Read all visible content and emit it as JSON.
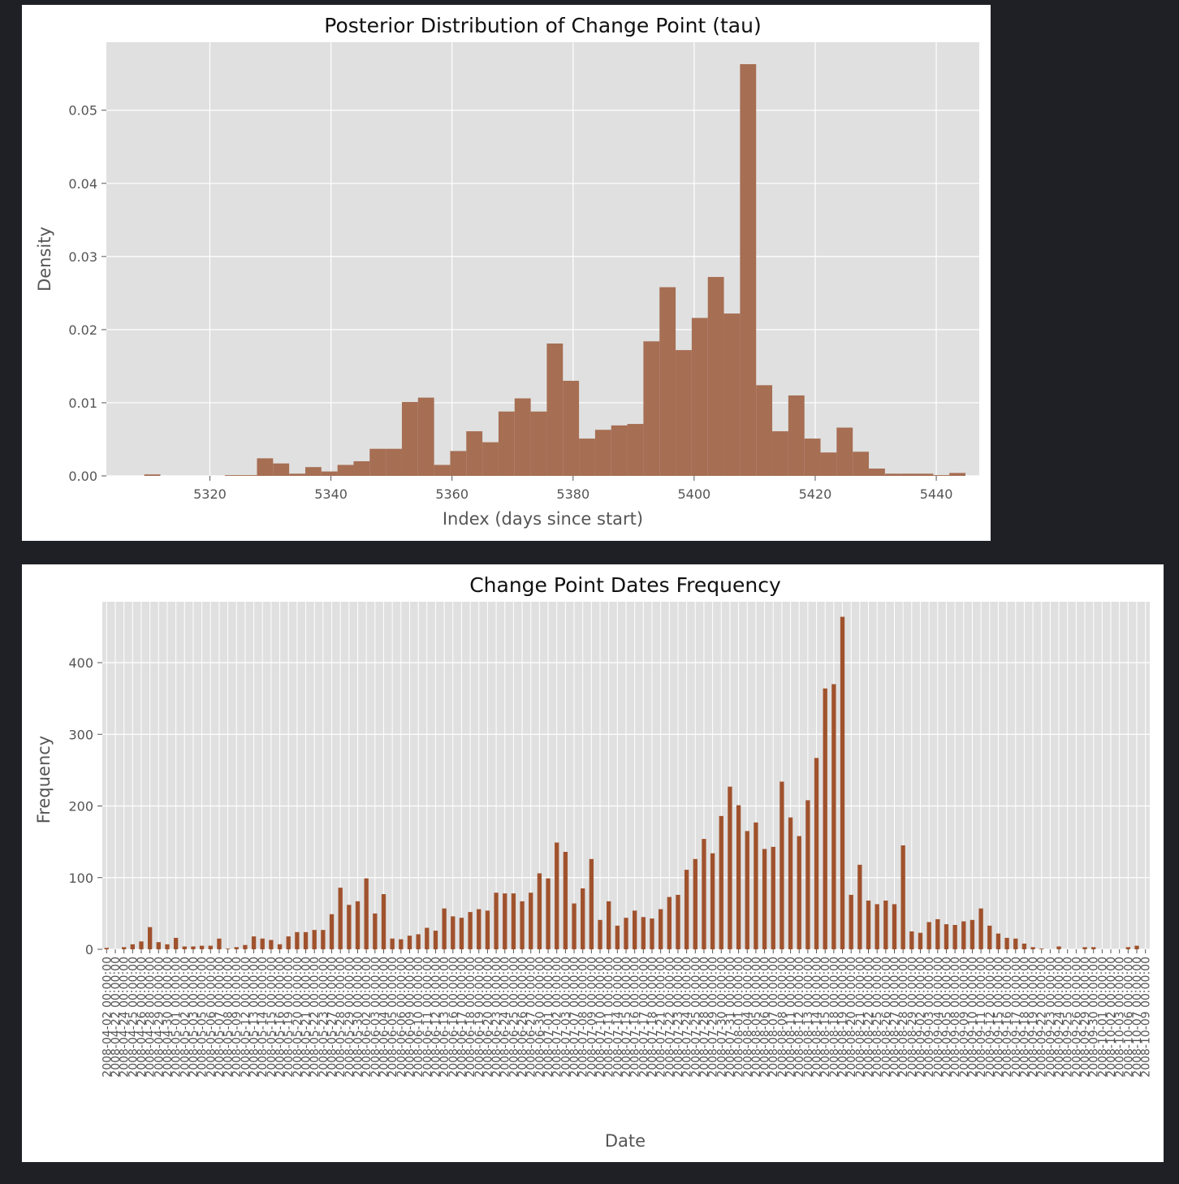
{
  "chart_data": [
    {
      "type": "bar",
      "title": "Posterior Distribution of Change Point (tau)",
      "xlabel": "Index (days since start)",
      "ylabel": "Density",
      "xlim": [
        5302.9,
        5447.1
      ],
      "ylim": [
        0,
        0.0593
      ],
      "xticks": [
        "5320",
        "5340",
        "5360",
        "5380",
        "5400",
        "5420",
        "5440"
      ],
      "yticks": [
        "0.00",
        "0.01",
        "0.02",
        "0.03",
        "0.04",
        "0.05"
      ],
      "bin_start": 5306.5,
      "bin_width": 2.66,
      "values": [
        0.0,
        0.0002,
        0.0,
        0.0,
        0.0,
        0.0,
        0.0001,
        0.0001,
        0.0024,
        0.0017,
        0.0003,
        0.0012,
        0.0006,
        0.0015,
        0.002,
        0.0037,
        0.0037,
        0.0101,
        0.0107,
        0.0015,
        0.0034,
        0.0061,
        0.0046,
        0.0088,
        0.0106,
        0.0088,
        0.0181,
        0.013,
        0.0051,
        0.0063,
        0.0069,
        0.0071,
        0.0184,
        0.0258,
        0.0172,
        0.0216,
        0.0272,
        0.0222,
        0.0563,
        0.0124,
        0.0061,
        0.011,
        0.0051,
        0.0032,
        0.0066,
        0.0033,
        0.001,
        0.0003,
        0.0003,
        0.0003,
        0.0001,
        0.0004
      ],
      "grid": true,
      "color": "#a66e53"
    },
    {
      "type": "bar",
      "title": "Change Point Dates Frequency",
      "xlabel": "Date",
      "ylabel": "Frequency",
      "ylim": [
        0,
        485
      ],
      "yticks": [
        "0",
        "100",
        "200",
        "300",
        "400"
      ],
      "values": [
        2,
        0,
        3,
        7,
        11,
        31,
        10,
        7,
        16,
        4,
        4,
        5,
        5,
        15,
        1,
        3,
        6,
        18,
        15,
        13,
        7,
        18,
        24,
        24,
        27,
        27,
        49,
        86,
        62,
        67,
        99,
        50,
        77,
        15,
        14,
        19,
        21,
        30,
        26,
        57,
        46,
        44,
        52,
        56,
        54,
        79,
        78,
        78,
        67,
        79,
        106,
        99,
        149,
        136,
        64,
        85,
        126,
        41,
        67,
        33,
        44,
        54,
        45,
        43,
        56,
        73,
        76,
        111,
        126,
        154,
        134,
        186,
        227,
        201,
        165,
        177,
        140,
        143,
        234,
        184,
        158,
        208,
        267,
        364,
        370,
        464,
        76,
        118,
        68,
        63,
        68,
        63,
        145,
        25,
        23,
        38,
        42,
        35,
        34,
        39,
        41,
        57,
        33,
        22,
        16,
        15,
        8,
        3,
        1,
        0,
        4,
        0,
        0,
        3,
        3,
        0,
        0,
        0,
        3,
        5,
        0
      ],
      "xtick_labels": [
        "2008-04-02 00:00:00",
        "2008-04-22 00:00:00",
        "2008-04-24 00:00:00",
        "2008-04-25 00:00:00",
        "2008-04-26 00:00:00",
        "2008-04-28 00:00:00",
        "2008-04-29 00:00:00",
        "2008-04-30 00:00:00",
        "2008-05-01 00:00:00",
        "2008-05-02 00:00:00",
        "2008-05-03 00:00:00",
        "2008-05-05 00:00:00",
        "2008-05-06 00:00:00",
        "2008-05-07 00:00:00",
        "2008-05-08 00:00:00",
        "2008-05-09 00:00:00",
        "2008-05-12 00:00:00",
        "2008-05-13 00:00:00",
        "2008-05-14 00:00:00",
        "2008-05-15 00:00:00",
        "2008-05-16 00:00:00",
        "2008-05-19 00:00:00",
        "2008-05-20 00:00:00",
        "2008-05-21 00:00:00",
        "2008-05-22 00:00:00",
        "2008-05-23 00:00:00",
        "2008-05-27 00:00:00",
        "2008-05-28 00:00:00",
        "2008-05-29 00:00:00",
        "2008-05-30 00:00:00",
        "2008-06-02 00:00:00",
        "2008-06-03 00:00:00",
        "2008-06-04 00:00:00",
        "2008-06-05 00:00:00",
        "2008-06-06 00:00:00",
        "2008-06-09 00:00:00",
        "2008-06-10 00:00:00",
        "2008-06-11 00:00:00",
        "2008-06-12 00:00:00",
        "2008-06-13 00:00:00",
        "2008-06-16 00:00:00",
        "2008-06-17 00:00:00",
        "2008-06-18 00:00:00",
        "2008-06-19 00:00:00",
        "2008-06-20 00:00:00",
        "2008-06-23 00:00:00",
        "2008-06-24 00:00:00",
        "2008-06-25 00:00:00",
        "2008-06-26 00:00:00",
        "2008-06-27 00:00:00",
        "2008-06-30 00:00:00",
        "2008-07-01 00:00:00",
        "2008-07-02 00:00:00",
        "2008-07-03 00:00:00",
        "2008-07-07 00:00:00",
        "2008-07-08 00:00:00",
        "2008-07-09 00:00:00",
        "2008-07-10 00:00:00",
        "2008-07-11 00:00:00",
        "2008-07-14 00:00:00",
        "2008-07-15 00:00:00",
        "2008-07-16 00:00:00",
        "2008-07-17 00:00:00",
        "2008-07-18 00:00:00",
        "2008-07-21 00:00:00",
        "2008-07-22 00:00:00",
        "2008-07-23 00:00:00",
        "2008-07-24 00:00:00",
        "2008-07-25 00:00:00",
        "2008-07-28 00:00:00",
        "2008-07-29 00:00:00",
        "2008-07-30 00:00:00",
        "2008-07-31 00:00:00",
        "2008-08-01 00:00:00",
        "2008-08-04 00:00:00",
        "2008-08-05 00:00:00",
        "2008-08-06 00:00:00",
        "2008-08-07 00:00:00",
        "2008-08-08 00:00:00",
        "2008-08-11 00:00:00",
        "2008-08-12 00:00:00",
        "2008-08-13 00:00:00",
        "2008-08-14 00:00:00",
        "2008-08-15 00:00:00",
        "2008-08-18 00:00:00",
        "2008-08-19 00:00:00",
        "2008-08-20 00:00:00",
        "2008-08-21 00:00:00",
        "2008-08-22 00:00:00",
        "2008-08-25 00:00:00",
        "2008-08-26 00:00:00",
        "2008-08-27 00:00:00",
        "2008-08-28 00:00:00",
        "2008-08-29 00:00:00",
        "2008-09-02 00:00:00",
        "2008-09-03 00:00:00",
        "2008-09-04 00:00:00",
        "2008-09-05 00:00:00",
        "2008-09-08 00:00:00",
        "2008-09-09 00:00:00",
        "2008-09-10 00:00:00",
        "2008-09-11 00:00:00",
        "2008-09-12 00:00:00",
        "2008-09-15 00:00:00",
        "2008-09-16 00:00:00",
        "2008-09-17 00:00:00",
        "2008-09-18 00:00:00",
        "2008-09-19 00:00:00",
        "2008-09-22 00:00:00",
        "2008-09-23 00:00:00",
        "2008-09-24 00:00:00",
        "2008-09-25 00:00:00",
        "2008-09-26 00:00:00",
        "2008-09-29 00:00:00",
        "2008-09-30 00:00:00",
        "2008-10-01 00:00:00",
        "2008-10-02 00:00:00",
        "2008-10-03 00:00:00",
        "2008-10-06 00:00:00",
        "2008-10-07 00:00:00",
        "2008-10-09 00:00:00"
      ],
      "grid": true,
      "color": "#a0522d"
    }
  ]
}
